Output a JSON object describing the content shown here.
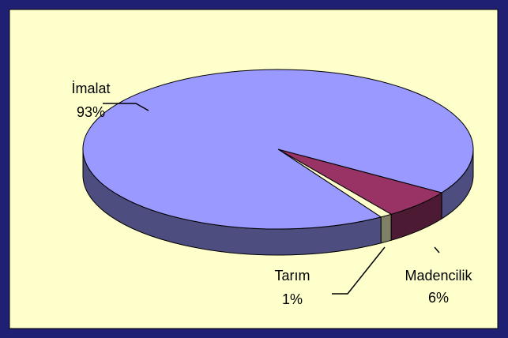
{
  "chart_data": {
    "type": "pie",
    "categories": [
      "Madencilik",
      "Tarım",
      "İmalat"
    ],
    "values": [
      6,
      1,
      93
    ],
    "value_labels": [
      "6%",
      "1%",
      "93%"
    ],
    "colors": [
      "#993366",
      "#ffffcc",
      "#9999ff"
    ]
  }
}
